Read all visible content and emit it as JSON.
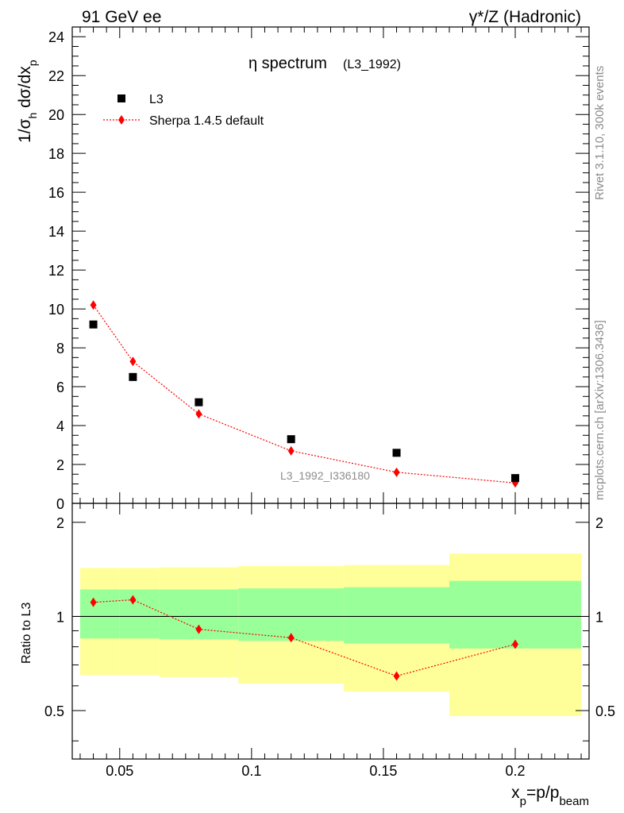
{
  "header": {
    "left": "91 GeV ee",
    "right": "γ*/Z (Hadronic)"
  },
  "side_text": {
    "rivet": "Rivet 3.1.10,  300k events",
    "mcplots": "mcplots.cern.ch [arXiv:1306.3436]"
  },
  "plot_title": {
    "main": "η spectrum",
    "tag": "(L3_1992)"
  },
  "watermark": "L3_1992_I336180",
  "legend": {
    "data_label": "L3",
    "mc_label": "Sherpa 1.4.5 default"
  },
  "colors": {
    "data": "#000000",
    "mc": "#ff0000",
    "band_inner": "#99ff99",
    "band_outer": "#ffff99"
  },
  "chart_data": {
    "type": "scatter",
    "xlabel": "x_p=p/p_beam",
    "ylabel": "1/σ_h dσ/dx_p",
    "ratio_ylabel": "Ratio to L3",
    "xlim": [
      0.032,
      0.228
    ],
    "ylim": [
      0,
      24.5
    ],
    "ratio_ylim": [
      0.35,
      2.3
    ],
    "x_ticks": [
      0.05,
      0.1,
      0.15,
      0.2
    ],
    "x_tick_labels": [
      "0.05",
      "0.1",
      "0.15",
      "0.2"
    ],
    "y_ticks": [
      0,
      2,
      4,
      6,
      8,
      10,
      12,
      14,
      16,
      18,
      20,
      22,
      24
    ],
    "y_tick_labels": [
      "0",
      "2",
      "4",
      "6",
      "8",
      "10",
      "12",
      "14",
      "16",
      "18",
      "20",
      "22",
      "24"
    ],
    "ratio_ticks": [
      0.5,
      1,
      2
    ],
    "ratio_tick_labels": [
      "0.5",
      "1",
      "2"
    ],
    "series": [
      {
        "name": "L3",
        "marker": "square",
        "x": [
          0.04,
          0.055,
          0.08,
          0.115,
          0.155,
          0.2
        ],
        "y": [
          9.2,
          6.5,
          5.2,
          3.3,
          2.6,
          1.3
        ]
      },
      {
        "name": "Sherpa 1.4.5 default",
        "marker": "diamond",
        "x": [
          0.04,
          0.055,
          0.08,
          0.115,
          0.155,
          0.2
        ],
        "y": [
          10.2,
          7.3,
          4.6,
          2.7,
          1.6,
          1.05
        ]
      }
    ],
    "ratio": {
      "x": [
        0.04,
        0.055,
        0.08,
        0.115,
        0.155,
        0.2
      ],
      "y": [
        1.11,
        1.13,
        0.91,
        0.855,
        0.645,
        0.815
      ]
    },
    "bands": [
      {
        "x0": 0.035,
        "x1": 0.05,
        "inner": [
          0.85,
          1.22
        ],
        "outer": [
          0.65,
          1.43
        ]
      },
      {
        "x0": 0.05,
        "x1": 0.065,
        "inner": [
          0.85,
          1.22
        ],
        "outer": [
          0.65,
          1.43
        ]
      },
      {
        "x0": 0.065,
        "x1": 0.095,
        "inner": [
          0.845,
          1.22
        ],
        "outer": [
          0.64,
          1.435
        ]
      },
      {
        "x0": 0.095,
        "x1": 0.135,
        "inner": [
          0.835,
          1.23
        ],
        "outer": [
          0.61,
          1.45
        ]
      },
      {
        "x0": 0.135,
        "x1": 0.175,
        "inner": [
          0.82,
          1.24
        ],
        "outer": [
          0.575,
          1.46
        ]
      },
      {
        "x0": 0.175,
        "x1": 0.225,
        "inner": [
          0.79,
          1.3
        ],
        "outer": [
          0.48,
          1.59
        ]
      }
    ],
    "ratio_reference": 1
  }
}
